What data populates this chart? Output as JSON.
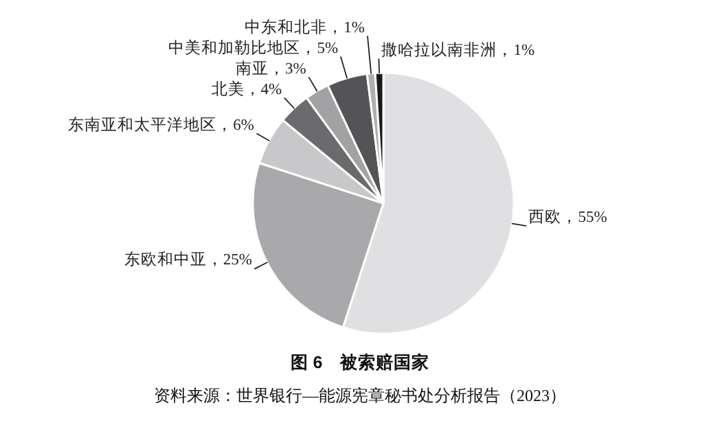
{
  "chart_data": {
    "type": "pie",
    "title": "图 6　被索赔国家",
    "categories": [
      "西欧",
      "东欧和中亚",
      "东南亚和太平洋地区",
      "北美",
      "南亚",
      "中美和加勒比地区",
      "中东和北非",
      "撒哈拉以南非洲"
    ],
    "values": [
      55,
      25,
      6,
      4,
      3,
      5,
      1,
      1
    ],
    "colors": [
      "#e0e0e2",
      "#a9a9ab",
      "#c8c8ca",
      "#6b6b6d",
      "#a2a2a4",
      "#545456",
      "#b0b0b2",
      "#1a1a1a"
    ],
    "value_labels": [
      "，55%",
      "，25%",
      "，6%",
      "，4%",
      "，3%",
      "，5%",
      "，1%",
      "，1%"
    ],
    "annotations": [
      "资料来源：世界银行—能源宪章秘书处分析报告（2023）"
    ]
  }
}
